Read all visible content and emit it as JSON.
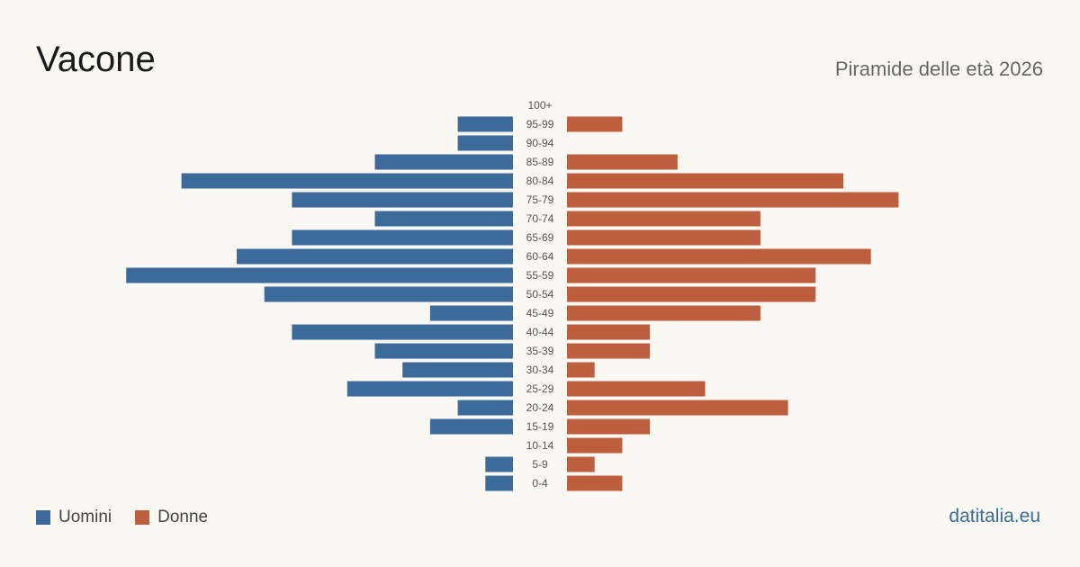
{
  "title": "Vacone",
  "subtitle": "Piramide delle età 2026",
  "brand": "datitalia.eu",
  "legend": {
    "men_label": "Uomini",
    "women_label": "Donne"
  },
  "colors": {
    "men": "#3c6a9b",
    "women": "#bd5f3e",
    "background": "#faf8f3",
    "category_text": "#555555"
  },
  "chart_data": {
    "type": "bar",
    "orientation": "horizontal-pyramid",
    "categories": [
      "100+",
      "95-99",
      "90-94",
      "85-89",
      "80-84",
      "75-79",
      "70-74",
      "65-69",
      "60-64",
      "55-59",
      "50-54",
      "45-49",
      "40-44",
      "35-39",
      "30-34",
      "25-29",
      "20-24",
      "15-19",
      "10-14",
      "5-9",
      "0-4"
    ],
    "series": [
      {
        "name": "Uomini",
        "values": [
          0,
          2,
          2,
          5,
          12,
          8,
          5,
          8,
          10,
          14,
          9,
          3,
          8,
          5,
          4,
          6,
          2,
          3,
          0,
          1,
          1
        ]
      },
      {
        "name": "Donne",
        "values": [
          0,
          2,
          0,
          4,
          10,
          12,
          7,
          7,
          11,
          9,
          9,
          7,
          3,
          3,
          1,
          5,
          8,
          3,
          2,
          1,
          2
        ]
      }
    ],
    "legend_position": "bottom-left",
    "grid": false
  }
}
